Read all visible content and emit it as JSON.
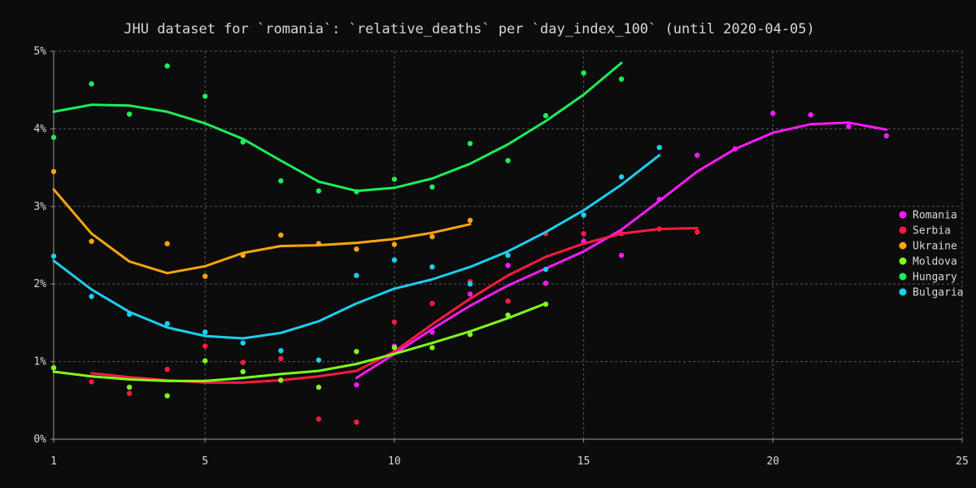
{
  "chart_data": {
    "type": "scatter",
    "title": "JHU dataset for `romania`: `relative_deaths` per `day_index_100` (until 2020-04-05)",
    "xlabel": "",
    "ylabel": "",
    "xlim": [
      1,
      25
    ],
    "ylim": [
      0,
      5
    ],
    "x_ticks": [
      1,
      5,
      10,
      15,
      20,
      25
    ],
    "x_tick_labels": [
      "1",
      "5",
      "10",
      "15",
      "20",
      "25"
    ],
    "y_ticks": [
      0,
      1,
      2,
      3,
      4,
      5
    ],
    "y_tick_labels": [
      "0%",
      "1%",
      "2%",
      "3%",
      "4%",
      "5%"
    ],
    "grid": true,
    "legend_position": "right",
    "series": [
      {
        "name": "Romania",
        "color": "#ff1aff",
        "points": [
          [
            9,
            0.7
          ],
          [
            10,
            1.2
          ],
          [
            11,
            1.38
          ],
          [
            12,
            1.87
          ],
          [
            13,
            2.24
          ],
          [
            14,
            2.01
          ],
          [
            15,
            2.55
          ],
          [
            16,
            2.37
          ],
          [
            17,
            3.09
          ],
          [
            18,
            3.66
          ],
          [
            19,
            3.74
          ],
          [
            20,
            4.2
          ],
          [
            21,
            4.18
          ],
          [
            22,
            4.03
          ],
          [
            23,
            3.91
          ]
        ],
        "trend": [
          [
            9,
            0.79
          ],
          [
            10,
            1.1
          ],
          [
            11,
            1.42
          ],
          [
            12,
            1.72
          ],
          [
            13,
            1.98
          ],
          [
            14,
            2.2
          ],
          [
            15,
            2.42
          ],
          [
            16,
            2.7
          ],
          [
            17,
            3.07
          ],
          [
            18,
            3.45
          ],
          [
            19,
            3.74
          ],
          [
            20,
            3.95
          ],
          [
            21,
            4.06
          ],
          [
            22,
            4.08
          ],
          [
            23,
            3.99
          ]
        ]
      },
      {
        "name": "Serbia",
        "color": "#ff1a40",
        "points": [
          [
            2,
            0.74
          ],
          [
            3,
            0.59
          ],
          [
            4,
            0.9
          ],
          [
            5,
            1.2
          ],
          [
            6,
            0.99
          ],
          [
            7,
            1.04
          ],
          [
            8,
            0.26
          ],
          [
            9,
            0.22
          ],
          [
            10,
            1.51
          ],
          [
            11,
            1.75
          ],
          [
            12,
            2.03
          ],
          [
            13,
            1.78
          ],
          [
            14,
            2.65
          ],
          [
            15,
            2.65
          ],
          [
            16,
            2.65
          ],
          [
            17,
            2.71
          ],
          [
            18,
            2.67
          ]
        ],
        "trend": [
          [
            2,
            0.85
          ],
          [
            3,
            0.8
          ],
          [
            4,
            0.76
          ],
          [
            5,
            0.73
          ],
          [
            6,
            0.73
          ],
          [
            7,
            0.76
          ],
          [
            8,
            0.81
          ],
          [
            9,
            0.88
          ],
          [
            10,
            1.13
          ],
          [
            11,
            1.48
          ],
          [
            12,
            1.81
          ],
          [
            13,
            2.11
          ],
          [
            14,
            2.35
          ],
          [
            15,
            2.52
          ],
          [
            16,
            2.65
          ],
          [
            17,
            2.71
          ],
          [
            18,
            2.72
          ]
        ]
      },
      {
        "name": "Ukraine",
        "color": "#ffa60d",
        "points": [
          [
            1,
            3.45
          ],
          [
            2,
            2.55
          ],
          [
            4,
            2.52
          ],
          [
            5,
            2.1
          ],
          [
            6,
            2.37
          ],
          [
            7,
            2.63
          ],
          [
            8,
            2.52
          ],
          [
            9,
            2.45
          ],
          [
            10,
            2.51
          ],
          [
            11,
            2.61
          ],
          [
            12,
            2.82
          ]
        ],
        "trend": [
          [
            1,
            3.22
          ],
          [
            2,
            2.65
          ],
          [
            3,
            2.29
          ],
          [
            4,
            2.14
          ],
          [
            5,
            2.23
          ],
          [
            6,
            2.4
          ],
          [
            7,
            2.49
          ],
          [
            8,
            2.5
          ],
          [
            9,
            2.53
          ],
          [
            10,
            2.58
          ],
          [
            11,
            2.66
          ],
          [
            12,
            2.77
          ]
        ]
      },
      {
        "name": "Moldova",
        "color": "#80ff1a",
        "points": [
          [
            1,
            0.92
          ],
          [
            3,
            0.67
          ],
          [
            4,
            0.56
          ],
          [
            5,
            1.01
          ],
          [
            6,
            0.87
          ],
          [
            7,
            0.76
          ],
          [
            8,
            0.67
          ],
          [
            9,
            1.13
          ],
          [
            10,
            1.18
          ],
          [
            11,
            1.18
          ],
          [
            12,
            1.35
          ],
          [
            13,
            1.6
          ],
          [
            14,
            1.74
          ]
        ],
        "trend": [
          [
            1,
            0.87
          ],
          [
            2,
            0.81
          ],
          [
            3,
            0.77
          ],
          [
            4,
            0.75
          ],
          [
            5,
            0.75
          ],
          [
            6,
            0.79
          ],
          [
            7,
            0.84
          ],
          [
            8,
            0.88
          ],
          [
            9,
            0.97
          ],
          [
            10,
            1.1
          ],
          [
            11,
            1.24
          ],
          [
            12,
            1.39
          ],
          [
            13,
            1.56
          ],
          [
            14,
            1.75
          ]
        ]
      },
      {
        "name": "Hungary",
        "color": "#1af05a",
        "points": [
          [
            1,
            3.89
          ],
          [
            2,
            4.58
          ],
          [
            3,
            4.19
          ],
          [
            4,
            4.81
          ],
          [
            5,
            4.42
          ],
          [
            6,
            3.83
          ],
          [
            7,
            3.33
          ],
          [
            8,
            3.2
          ],
          [
            9,
            3.19
          ],
          [
            10,
            3.35
          ],
          [
            11,
            3.25
          ],
          [
            12,
            3.81
          ],
          [
            13,
            3.59
          ],
          [
            14,
            4.17
          ],
          [
            15,
            4.72
          ],
          [
            16,
            4.64
          ]
        ],
        "trend": [
          [
            1,
            4.22
          ],
          [
            2,
            4.31
          ],
          [
            3,
            4.3
          ],
          [
            4,
            4.22
          ],
          [
            5,
            4.07
          ],
          [
            6,
            3.87
          ],
          [
            7,
            3.59
          ],
          [
            8,
            3.32
          ],
          [
            9,
            3.2
          ],
          [
            10,
            3.24
          ],
          [
            11,
            3.36
          ],
          [
            12,
            3.55
          ],
          [
            13,
            3.8
          ],
          [
            14,
            4.1
          ],
          [
            15,
            4.44
          ],
          [
            16,
            4.85
          ]
        ]
      },
      {
        "name": "Bulgaria",
        "color": "#1ad0f0",
        "points": [
          [
            1,
            2.36
          ],
          [
            2,
            1.84
          ],
          [
            3,
            1.61
          ],
          [
            4,
            1.49
          ],
          [
            5,
            1.38
          ],
          [
            6,
            1.24
          ],
          [
            7,
            1.14
          ],
          [
            8,
            1.02
          ],
          [
            9,
            2.11
          ],
          [
            10,
            2.31
          ],
          [
            11,
            2.22
          ],
          [
            12,
            2.0
          ],
          [
            13,
            2.37
          ],
          [
            14,
            2.19
          ],
          [
            15,
            2.89
          ],
          [
            16,
            3.38
          ],
          [
            17,
            3.76
          ]
        ],
        "trend": [
          [
            1,
            2.3
          ],
          [
            2,
            1.93
          ],
          [
            3,
            1.64
          ],
          [
            4,
            1.44
          ],
          [
            5,
            1.33
          ],
          [
            6,
            1.3
          ],
          [
            7,
            1.37
          ],
          [
            8,
            1.52
          ],
          [
            9,
            1.75
          ],
          [
            10,
            1.94
          ],
          [
            11,
            2.06
          ],
          [
            12,
            2.22
          ],
          [
            13,
            2.42
          ],
          [
            14,
            2.67
          ],
          [
            15,
            2.95
          ],
          [
            16,
            3.28
          ],
          [
            17,
            3.66
          ]
        ]
      }
    ]
  }
}
